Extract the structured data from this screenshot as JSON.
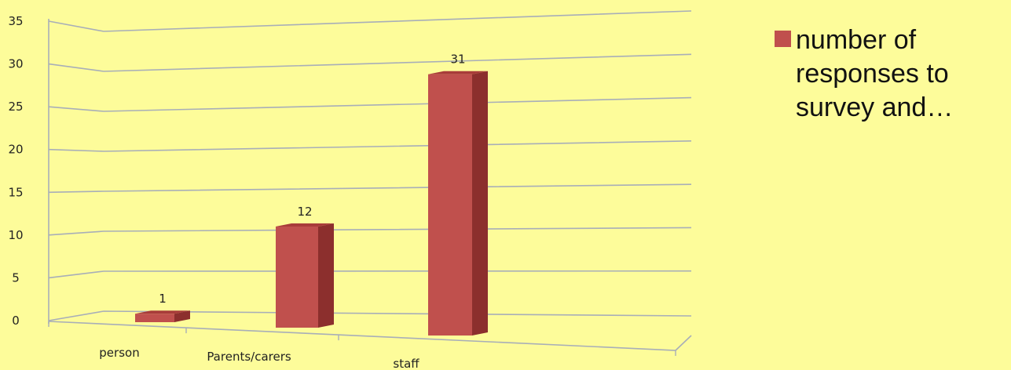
{
  "chart_data": {
    "type": "bar",
    "categories": [
      "person",
      "Parents/carers",
      "staff"
    ],
    "values": [
      1,
      12,
      31
    ],
    "series": [
      {
        "name": "number of\nresponses to\nsurvey and…",
        "values": [
          1,
          12,
          31
        ]
      }
    ],
    "ylim": [
      0,
      35
    ],
    "yticks": [
      "0",
      "5",
      "10",
      "15",
      "20",
      "25",
      "30",
      "35"
    ],
    "data_labels": [
      "1",
      "12",
      "31"
    ],
    "title": "",
    "xlabel": "",
    "ylabel": "",
    "grid": true,
    "legend_position": "right",
    "colors": {
      "bar_front": "#c0504d",
      "bar_side": "#8c2f2d",
      "bar_top": "#a83c3a",
      "grid": "#a8aeb8",
      "background": "#fdfc9a"
    }
  }
}
